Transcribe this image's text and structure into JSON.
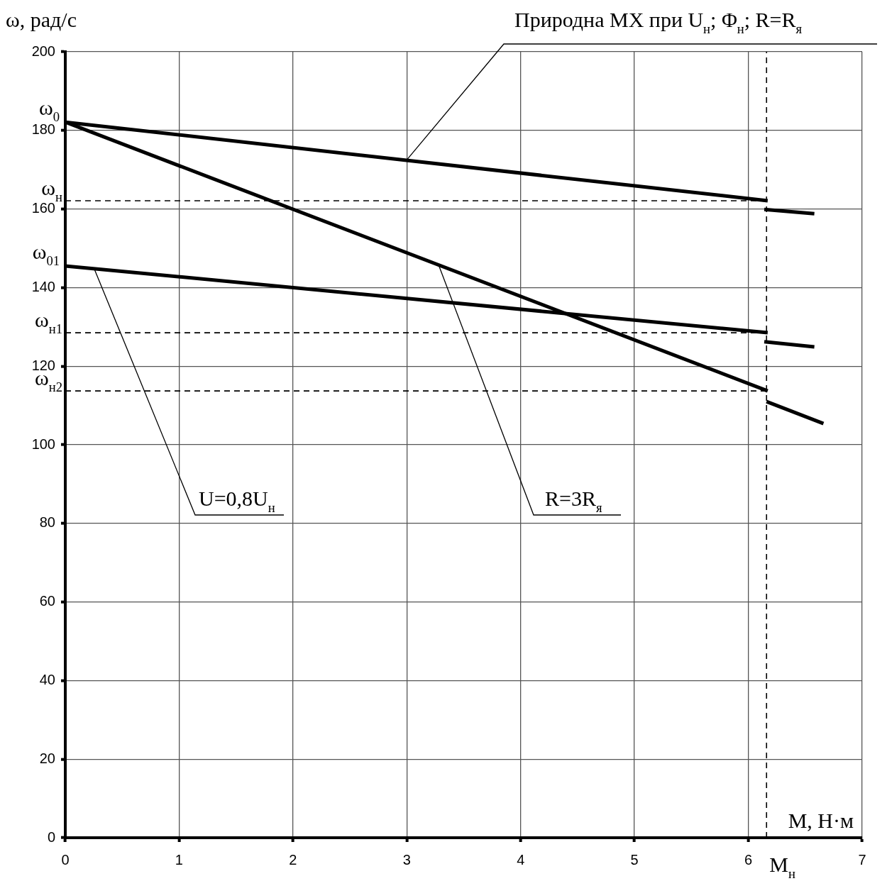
{
  "chart_data": {
    "type": "line",
    "xlabel": "M, Н·м",
    "ylabel": "ω, рад/с",
    "xlim": [
      0,
      7
    ],
    "xticks": [
      0,
      1,
      2,
      3,
      4,
      5,
      6,
      7
    ],
    "ylim": [
      0,
      200
    ],
    "yticks": [
      0,
      20,
      40,
      60,
      80,
      100,
      120,
      140,
      160,
      180,
      200
    ],
    "grid": true,
    "legend": false,
    "line_style": "solid",
    "series": [
      {
        "color": "#000000",
        "x": [
          0,
          6.17
        ],
        "values": [
          182.1,
          162.1
        ]
      },
      {
        "color": "#000000",
        "x": [
          6.14,
          6.58
        ],
        "values": [
          159.9,
          158.8
        ]
      },
      {
        "color": "#000000",
        "x": [
          0,
          6.17
        ],
        "values": [
          182.1,
          113.7
        ]
      },
      {
        "color": "#000000",
        "x": [
          6.16,
          6.66
        ],
        "values": [
          111.0,
          105.4
        ]
      },
      {
        "color": "#000000",
        "x": [
          0,
          6.17
        ],
        "values": [
          145.5,
          128.5
        ]
      },
      {
        "color": "#000000",
        "x": [
          6.14,
          6.58
        ],
        "values": [
          126.2,
          124.9
        ]
      }
    ],
    "ref_lines": [
      {
        "axis": "y",
        "value": 162.1,
        "label": "ω$_{н}$",
        "color": "#000000",
        "line_style": "dashed"
      },
      {
        "axis": "y",
        "value": 128.5,
        "label": "ω$_{н1}$",
        "color": "#000000",
        "line_style": "dashed"
      },
      {
        "axis": "y",
        "value": 113.7,
        "label": "ω$_{н2}$",
        "color": "#000000",
        "line_style": "dashed"
      },
      {
        "axis": "x",
        "value": 6.16,
        "label": "M$_{н}$",
        "color": "#000000",
        "line_style": "dashed"
      }
    ],
    "annotations": [
      {
        "text": "ω$_{0}$",
        "x": 0,
        "y": 182.1
      },
      {
        "text": "ω$_{01}$",
        "x": 0,
        "y": 145.5
      },
      {
        "text": "Природна МХ при U$_{н}$; Φ$_{н}$; R=R$_{я}$",
        "x": 3,
        "y": 172.5
      },
      {
        "text": "U=0,8U$_{н}$",
        "x": 0.25,
        "y": 145.1
      },
      {
        "text": "R=3R$_{я}$",
        "x": 3.28,
        "y": 145.7
      }
    ]
  }
}
